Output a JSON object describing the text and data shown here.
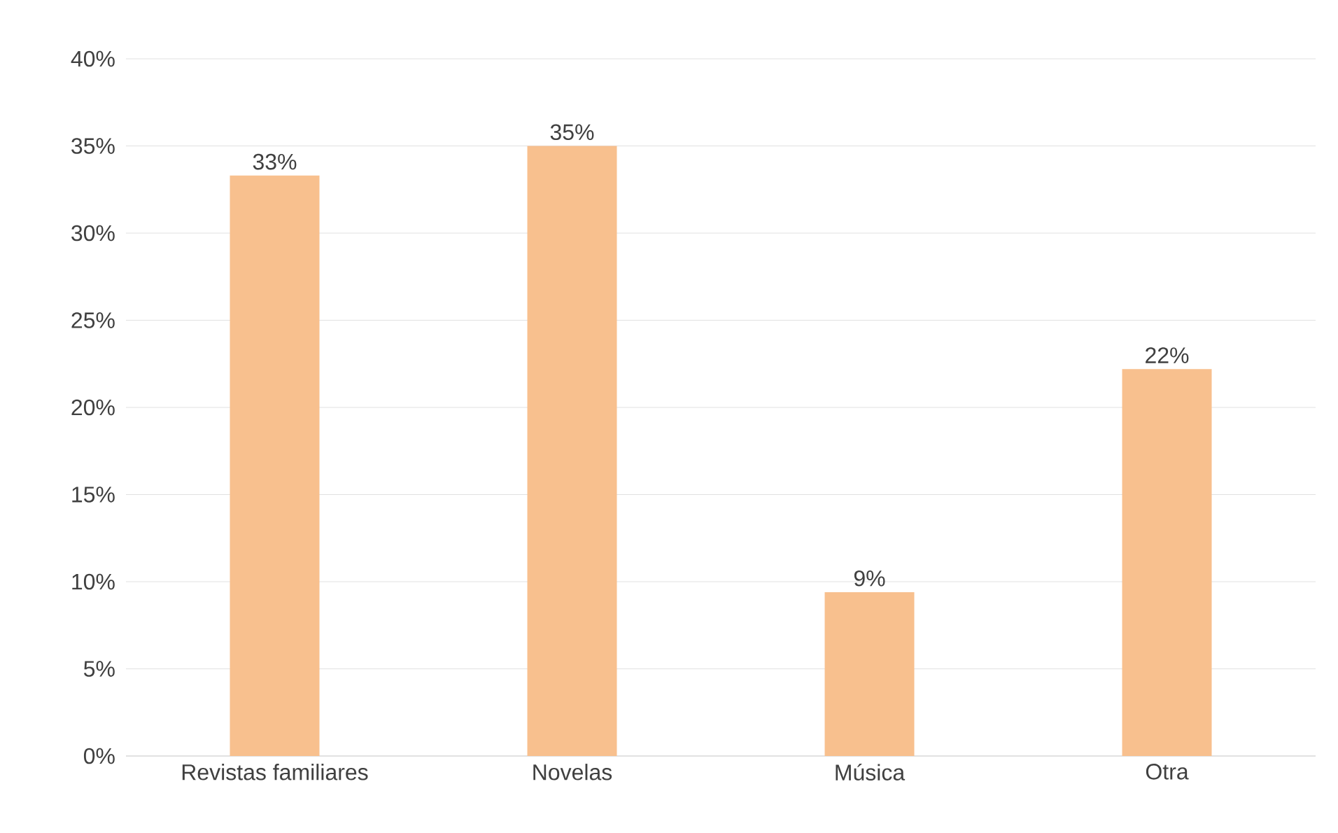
{
  "chart_data": {
    "type": "bar",
    "categories": [
      "Revistas familiares",
      "Novelas",
      "Música",
      "Otra"
    ],
    "values": [
      33.3,
      35,
      9.4,
      22.2
    ],
    "value_labels": [
      "33%",
      "35%",
      "9%",
      "22%"
    ],
    "color": "#f8c08e",
    "ylim": [
      0,
      40
    ],
    "yticks": [
      {
        "value": 0,
        "label": "0%"
      },
      {
        "value": 5,
        "label": "5%"
      },
      {
        "value": 10,
        "label": "10%"
      },
      {
        "value": 15,
        "label": "15%"
      },
      {
        "value": 20,
        "label": "20%"
      },
      {
        "value": 25,
        "label": "25%"
      },
      {
        "value": 30,
        "label": "30%"
      },
      {
        "value": 35,
        "label": "35%"
      },
      {
        "value": 40,
        "label": "40%"
      }
    ],
    "grid": "y"
  }
}
